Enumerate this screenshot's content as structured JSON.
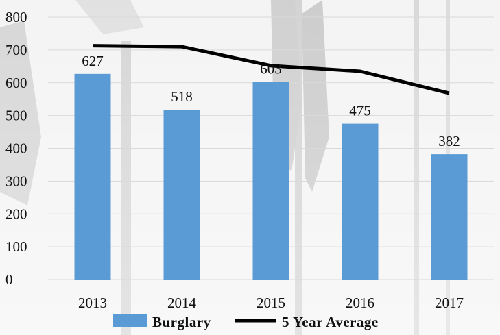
{
  "colors": {
    "bar": "#5b9bd5",
    "line": "#000000",
    "grid": "#d9d9d9",
    "background": "#f4f4f4"
  },
  "chart_data": {
    "type": "bar",
    "categories": [
      "2013",
      "2014",
      "2015",
      "2016",
      "2017"
    ],
    "series": [
      {
        "name": "Burglary",
        "type": "bar",
        "values": [
          627,
          518,
          603,
          475,
          382
        ],
        "data_labels": [
          "627",
          "518",
          "603",
          "475",
          "382"
        ]
      },
      {
        "name": "5 Year Average",
        "type": "line",
        "values": [
          713,
          710,
          652,
          635,
          568
        ]
      }
    ],
    "yticks": [
      "0",
      "100",
      "200",
      "300",
      "400",
      "500",
      "600",
      "700",
      "800"
    ],
    "ylim": [
      0,
      800
    ],
    "grid": true,
    "legend_position": "bottom"
  }
}
